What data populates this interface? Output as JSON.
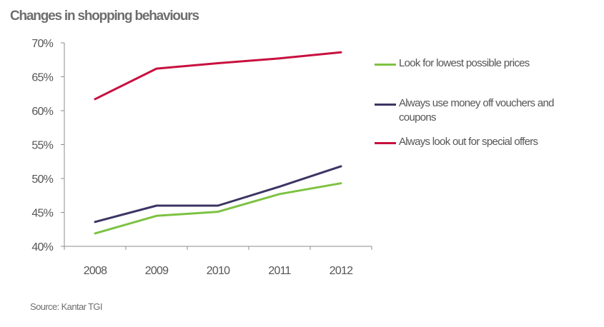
{
  "title": "Changes in shopping behaviours",
  "source": "Source: Kantar TGI",
  "chart_data": {
    "type": "line",
    "title": "Changes in shopping behaviours",
    "xlabel": "",
    "ylabel": "",
    "categories": [
      "2008",
      "2009",
      "2010",
      "2011",
      "2012"
    ],
    "ylim": [
      40,
      70
    ],
    "yticks": [
      "40%",
      "45%",
      "50%",
      "55%",
      "60%",
      "65%",
      "70%"
    ],
    "ytick_values": [
      40,
      45,
      50,
      55,
      60,
      65,
      70
    ],
    "grid": false,
    "legend_position": "right",
    "series": [
      {
        "name": "Look for lowest possible prices",
        "color": "#7dc242",
        "values": [
          41.9,
          44.5,
          45.1,
          47.7,
          49.3
        ]
      },
      {
        "name": "Always use money off vouchers and coupons",
        "color": "#3b3564",
        "values": [
          43.6,
          46.0,
          46.0,
          48.8,
          51.8
        ]
      },
      {
        "name": "Always look out for special offers",
        "color": "#c8103e",
        "values": [
          61.7,
          66.2,
          67.0,
          67.7,
          68.6
        ]
      }
    ]
  }
}
